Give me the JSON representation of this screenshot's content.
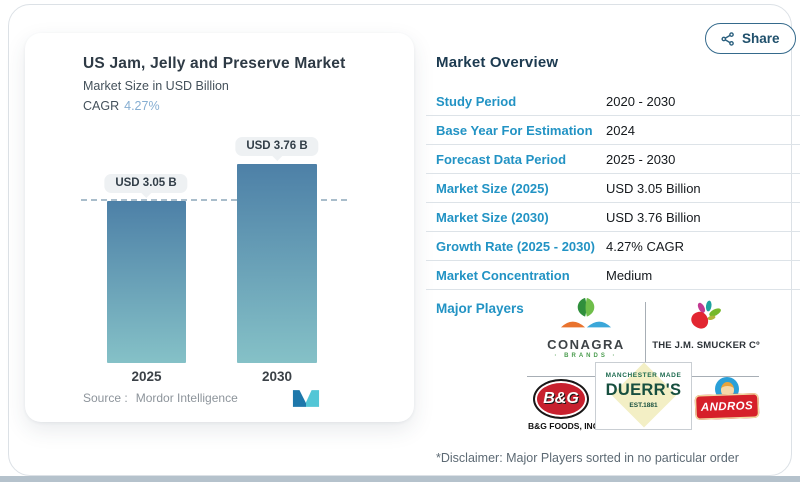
{
  "share_button": {
    "label": "Share"
  },
  "chart_card": {
    "title": "US Jam, Jelly and Preserve Market",
    "subtitle": "Market Size in USD Billion",
    "cagr_label": "CAGR",
    "cagr_value": "4.27%",
    "source_label": "Source :",
    "source_value": "Mordor Intelligence"
  },
  "chart_data": {
    "type": "bar",
    "title": "US Jam, Jelly and Preserve Market",
    "ylabel": "Market Size in USD Billion",
    "categories": [
      "2025",
      "2030"
    ],
    "values": [
      3.05,
      3.76
    ],
    "data_labels": [
      "USD 3.05 B",
      "USD 3.76 B"
    ],
    "cagr": "4.27%",
    "reference_line": 3.05,
    "unit": "USD Billion",
    "bar_gradient_top": "#4d80a7",
    "bar_gradient_bottom": "#85c1c7",
    "source": "Mordor Intelligence",
    "grid": false,
    "legend": false
  },
  "overview": {
    "title": "Market Overview",
    "rows": [
      {
        "label": "Study Period",
        "value": "2020 - 2030"
      },
      {
        "label": "Base Year For Estimation",
        "value": "2024"
      },
      {
        "label": "Forecast Data Period",
        "value": "2025 - 2030"
      },
      {
        "label": "Market Size (2025)",
        "value": "USD 3.05 Billion"
      },
      {
        "label": "Market Size (2030)",
        "value": "USD 3.76 Billion"
      },
      {
        "label": "Growth Rate (2025 - 2030)",
        "value": "4.27% CAGR"
      },
      {
        "label": "Market Concentration",
        "value": "Medium"
      }
    ],
    "major_players_label": "Major Players",
    "players": {
      "conagra": {
        "name": "CONAGRA",
        "sub": "· BRANDS ·"
      },
      "smucker": {
        "name": "THE J.M. SMUCKER Cº"
      },
      "bg_foods": {
        "badge": "B&G",
        "name": "B&G FOODS, INC."
      },
      "duerrs": {
        "top": "MANCHESTER MADE",
        "name": "DUERR'S",
        "est": "EST.1881"
      },
      "andros": {
        "name": "ANDROS"
      }
    }
  },
  "disclaimer": "*Disclaimer: Major Players sorted in no particular order",
  "colors": {
    "accent_blue": "#2293c4",
    "heading_navy": "#1c3a50",
    "cagr_light_blue": "#86aed2",
    "bar_top": "#4d80a7",
    "bar_bottom": "#85c1c7",
    "share_border": "#356a8c"
  }
}
